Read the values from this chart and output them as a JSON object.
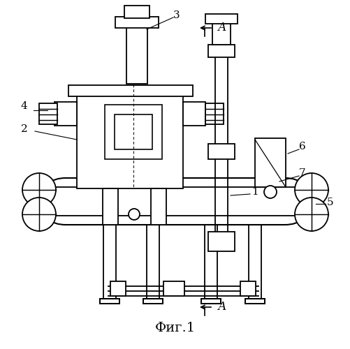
{
  "title": "Фиг.1",
  "bg_color": "#ffffff",
  "line_color": "#000000"
}
